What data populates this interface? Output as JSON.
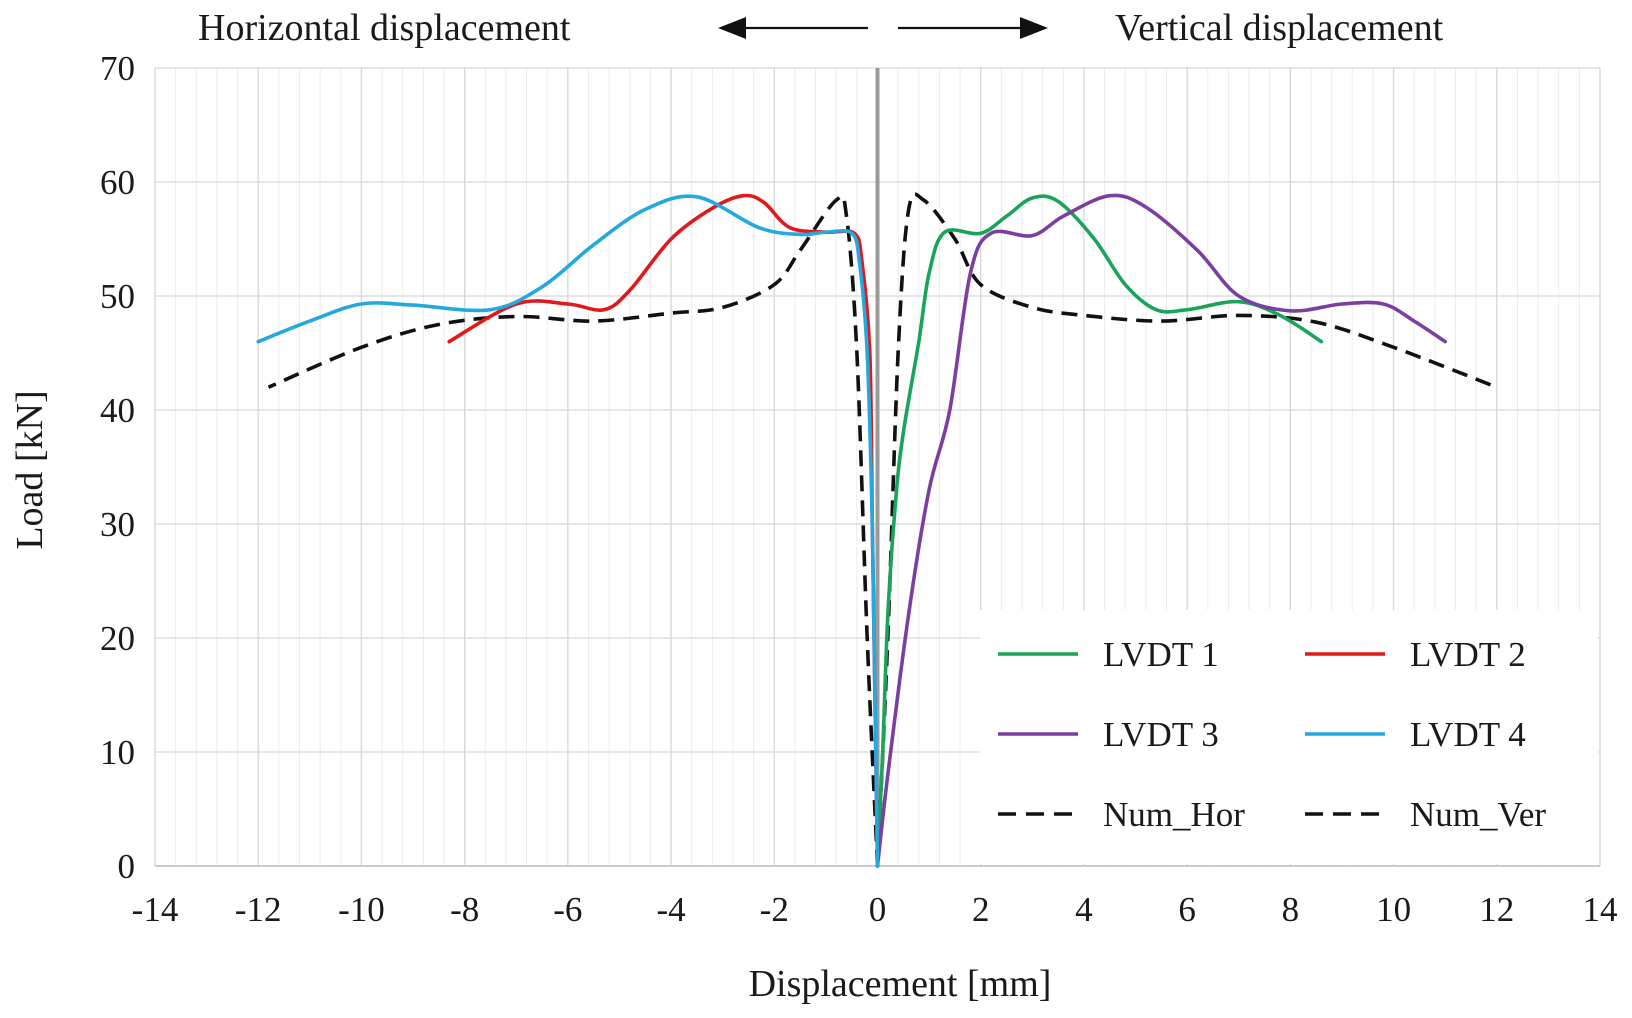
{
  "chart_data": {
    "type": "line",
    "title": "",
    "xlabel": "Displacement [mm]",
    "ylabel": "Load  [kN]",
    "xlim": [
      -14,
      14
    ],
    "ylim": [
      0,
      70
    ],
    "xticks": [
      -14,
      -12,
      -10,
      -8,
      -6,
      -4,
      -2,
      0,
      2,
      4,
      6,
      8,
      10,
      12,
      14
    ],
    "yticks": [
      0,
      10,
      20,
      30,
      40,
      50,
      60,
      70
    ],
    "xminor_step": 0.4,
    "yminor_step": 10,
    "grid": true,
    "header_left": "Horizontal displacement",
    "header_right": "Vertical displacement",
    "legend_position": "bottom-right",
    "series": [
      {
        "name": "LVDT 1",
        "color": "#1aa35a",
        "style": "solid",
        "points": [
          [
            0,
            0
          ],
          [
            0.1,
            10
          ],
          [
            0.2,
            22
          ],
          [
            0.35,
            32
          ],
          [
            0.5,
            38
          ],
          [
            0.8,
            46
          ],
          [
            1.0,
            52
          ],
          [
            1.3,
            55.6
          ],
          [
            2.0,
            55.5
          ],
          [
            2.5,
            57
          ],
          [
            3.0,
            58.6
          ],
          [
            3.5,
            58.3
          ],
          [
            4.2,
            55
          ],
          [
            4.8,
            51
          ],
          [
            5.4,
            48.8
          ],
          [
            6.0,
            48.8
          ],
          [
            7.0,
            49.5
          ],
          [
            7.8,
            48.3
          ],
          [
            8.6,
            46
          ]
        ]
      },
      {
        "name": "LVDT 2",
        "color": "#e0191c",
        "style": "solid",
        "points": [
          [
            0,
            0
          ],
          [
            -0.05,
            15
          ],
          [
            -0.1,
            30
          ],
          [
            -0.15,
            45
          ],
          [
            -0.3,
            53
          ],
          [
            -0.45,
            55.5
          ],
          [
            -1.0,
            55.6
          ],
          [
            -1.7,
            56
          ],
          [
            -2.2,
            58.2
          ],
          [
            -2.6,
            58.8
          ],
          [
            -3.2,
            57.7
          ],
          [
            -4.0,
            55
          ],
          [
            -4.8,
            50.5
          ],
          [
            -5.3,
            48.8
          ],
          [
            -6.0,
            49.3
          ],
          [
            -7.0,
            49.3
          ],
          [
            -8.3,
            46
          ]
        ]
      },
      {
        "name": "LVDT 3",
        "color": "#7a3fa0",
        "style": "solid",
        "points": [
          [
            0,
            0
          ],
          [
            0.2,
            8
          ],
          [
            0.6,
            22
          ],
          [
            1.0,
            33
          ],
          [
            1.4,
            40
          ],
          [
            1.8,
            52
          ],
          [
            2.2,
            55.5
          ],
          [
            3.0,
            55.3
          ],
          [
            3.6,
            57
          ],
          [
            4.5,
            58.8
          ],
          [
            5.2,
            57.8
          ],
          [
            6.2,
            54
          ],
          [
            7.0,
            50
          ],
          [
            8.0,
            48.7
          ],
          [
            9.0,
            49.3
          ],
          [
            9.8,
            49.3
          ],
          [
            10.4,
            47.8
          ],
          [
            11.0,
            46
          ]
        ]
      },
      {
        "name": "LVDT 4",
        "color": "#24a8de",
        "style": "solid",
        "points": [
          [
            0,
            0
          ],
          [
            -0.05,
            15
          ],
          [
            -0.1,
            30
          ],
          [
            -0.2,
            45
          ],
          [
            -0.35,
            53
          ],
          [
            -0.5,
            55.5
          ],
          [
            -1.0,
            55.6
          ],
          [
            -1.5,
            55.4
          ],
          [
            -2.3,
            56
          ],
          [
            -3.5,
            58.7
          ],
          [
            -4.5,
            57.6
          ],
          [
            -5.5,
            54.5
          ],
          [
            -6.5,
            50.8
          ],
          [
            -7.5,
            48.8
          ],
          [
            -9.0,
            49.2
          ],
          [
            -10.0,
            49.3
          ],
          [
            -11.0,
            47.8
          ],
          [
            -12.0,
            46
          ]
        ]
      },
      {
        "name": "Num_Hor",
        "color": "#111111",
        "style": "dashed",
        "points": [
          [
            0,
            0
          ],
          [
            -0.2,
            20
          ],
          [
            -0.4,
            45
          ],
          [
            -0.6,
            57
          ],
          [
            -0.8,
            58.4
          ],
          [
            -1.5,
            54
          ],
          [
            -2.0,
            51
          ],
          [
            -3.0,
            49
          ],
          [
            -4.0,
            48.5
          ],
          [
            -5.5,
            47.8
          ],
          [
            -7.0,
            48.2
          ],
          [
            -8.5,
            47.5
          ],
          [
            -10.0,
            45.5
          ],
          [
            -11.8,
            42
          ]
        ]
      },
      {
        "name": "Num_Ver",
        "color": "#111111",
        "style": "dashed",
        "points": [
          [
            0,
            0
          ],
          [
            0.2,
            20
          ],
          [
            0.4,
            45
          ],
          [
            0.6,
            57.5
          ],
          [
            0.9,
            58.4
          ],
          [
            1.5,
            55
          ],
          [
            2.0,
            51
          ],
          [
            3.0,
            49
          ],
          [
            4.0,
            48.3
          ],
          [
            5.5,
            47.8
          ],
          [
            7.0,
            48.3
          ],
          [
            8.5,
            47.7
          ],
          [
            10.0,
            45.5
          ],
          [
            12.0,
            42
          ]
        ]
      }
    ]
  }
}
